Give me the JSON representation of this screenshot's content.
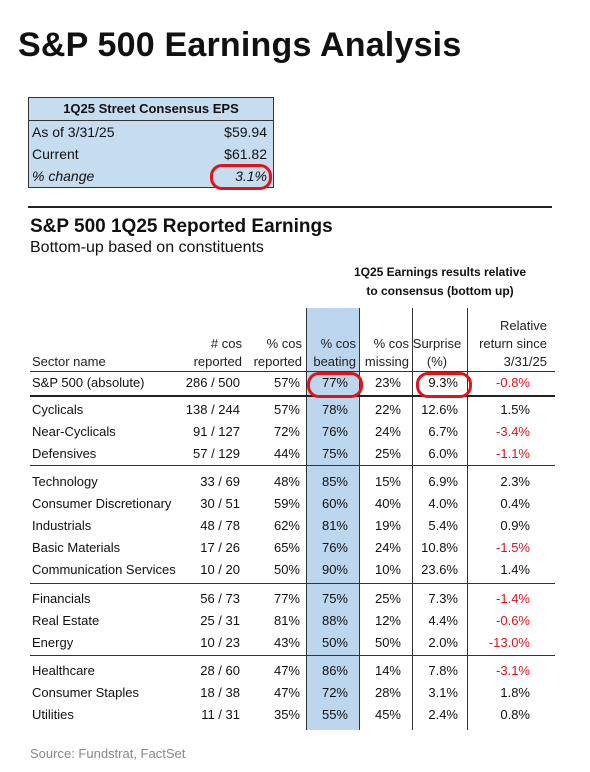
{
  "title": "S&P 500 Earnings Analysis",
  "consensus": {
    "header": "1Q25 Street Consensus EPS",
    "rows": [
      {
        "label": "As of 3/31/25",
        "value": "$59.94"
      },
      {
        "label": "Current",
        "value": "$61.82"
      },
      {
        "label": "% change",
        "value": "3.1%"
      }
    ]
  },
  "section": {
    "title": "S&P 500 1Q25 Reported Earnings",
    "subtitle": "Bottom-up based on constituents",
    "group_header": [
      "1Q25 Earnings results relative",
      "to consensus (bottom up)"
    ]
  },
  "table": {
    "headers": {
      "sector": [
        "Sector name"
      ],
      "reported": [
        "# cos",
        "reported"
      ],
      "pct_reported": [
        "% cos",
        "reported"
      ],
      "pct_beating": [
        "% cos",
        "beating"
      ],
      "pct_missing": [
        "% cos",
        "missing"
      ],
      "surprise": [
        "Surprise",
        "(%)"
      ],
      "relative": [
        "Relative",
        "return since",
        "3/31/25"
      ]
    },
    "rows": [
      {
        "sector": "S&P 500 (absolute)",
        "reported": "286 / 500",
        "pct_reported": "57%",
        "pct_beating": "77%",
        "pct_missing": "23%",
        "surprise": "9.3%",
        "relative": "-0.8%",
        "negative": true
      },
      {
        "sector": "Cyclicals",
        "reported": "138 / 244",
        "pct_reported": "57%",
        "pct_beating": "78%",
        "pct_missing": "22%",
        "surprise": "12.6%",
        "relative": "1.5%",
        "negative": false
      },
      {
        "sector": "Near-Cyclicals",
        "reported": "91 / 127",
        "pct_reported": "72%",
        "pct_beating": "76%",
        "pct_missing": "24%",
        "surprise": "6.7%",
        "relative": "-3.4%",
        "negative": true
      },
      {
        "sector": "Defensives",
        "reported": "57 / 129",
        "pct_reported": "44%",
        "pct_beating": "75%",
        "pct_missing": "25%",
        "surprise": "6.0%",
        "relative": "-1.1%",
        "negative": true
      },
      {
        "sector": "Technology",
        "reported": "33 / 69",
        "pct_reported": "48%",
        "pct_beating": "85%",
        "pct_missing": "15%",
        "surprise": "6.9%",
        "relative": "2.3%",
        "negative": false
      },
      {
        "sector": "Consumer Discretionary",
        "reported": "30 / 51",
        "pct_reported": "59%",
        "pct_beating": "60%",
        "pct_missing": "40%",
        "surprise": "4.0%",
        "relative": "0.4%",
        "negative": false
      },
      {
        "sector": "Industrials",
        "reported": "48 / 78",
        "pct_reported": "62%",
        "pct_beating": "81%",
        "pct_missing": "19%",
        "surprise": "5.4%",
        "relative": "0.9%",
        "negative": false
      },
      {
        "sector": "Basic Materials",
        "reported": "17 / 26",
        "pct_reported": "65%",
        "pct_beating": "76%",
        "pct_missing": "24%",
        "surprise": "10.8%",
        "relative": "-1.5%",
        "negative": true
      },
      {
        "sector": "Communication Services",
        "reported": "10 / 20",
        "pct_reported": "50%",
        "pct_beating": "90%",
        "pct_missing": "10%",
        "surprise": "23.6%",
        "relative": "1.4%",
        "negative": false
      },
      {
        "sector": "Financials",
        "reported": "56 / 73",
        "pct_reported": "77%",
        "pct_beating": "75%",
        "pct_missing": "25%",
        "surprise": "7.3%",
        "relative": "-1.4%",
        "negative": true
      },
      {
        "sector": "Real Estate",
        "reported": "25 / 31",
        "pct_reported": "81%",
        "pct_beating": "88%",
        "pct_missing": "12%",
        "surprise": "4.4%",
        "relative": "-0.6%",
        "negative": true
      },
      {
        "sector": "Energy",
        "reported": "10 / 23",
        "pct_reported": "43%",
        "pct_beating": "50%",
        "pct_missing": "50%",
        "surprise": "2.0%",
        "relative": "-13.0%",
        "negative": true
      },
      {
        "sector": "Healthcare",
        "reported": "28 / 60",
        "pct_reported": "47%",
        "pct_beating": "86%",
        "pct_missing": "14%",
        "surprise": "7.8%",
        "relative": "-3.1%",
        "negative": true
      },
      {
        "sector": "Consumer Staples",
        "reported": "18 / 38",
        "pct_reported": "47%",
        "pct_beating": "72%",
        "pct_missing": "28%",
        "surprise": "3.1%",
        "relative": "1.8%",
        "negative": false
      },
      {
        "sector": "Utilities",
        "reported": "11 / 31",
        "pct_reported": "35%",
        "pct_beating": "55%",
        "pct_missing": "45%",
        "surprise": "2.4%",
        "relative": "0.8%",
        "negative": false
      }
    ]
  },
  "source": "Source: Fundstrat, FactSet",
  "colors": {
    "highlight": "#bcd6ee",
    "box": "#c6dcef",
    "negative": "#e0131b",
    "circle": "#e0131b"
  }
}
